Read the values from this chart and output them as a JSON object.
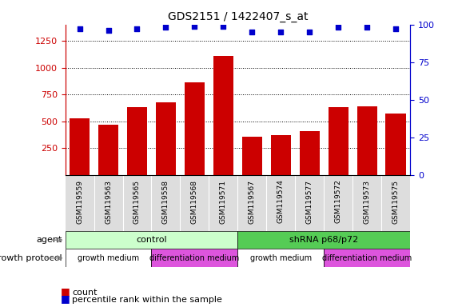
{
  "title": "GDS2151 / 1422407_s_at",
  "samples": [
    "GSM119559",
    "GSM119563",
    "GSM119565",
    "GSM119558",
    "GSM119568",
    "GSM119571",
    "GSM119567",
    "GSM119574",
    "GSM119577",
    "GSM119572",
    "GSM119573",
    "GSM119575"
  ],
  "counts": [
    530,
    470,
    630,
    680,
    860,
    1110,
    360,
    370,
    410,
    630,
    640,
    570
  ],
  "percentile_ranks": [
    97,
    96,
    97,
    98,
    99,
    99,
    95,
    95,
    95,
    98,
    98,
    97
  ],
  "ylim_left": [
    0,
    1400
  ],
  "ylim_right": [
    0,
    100
  ],
  "yticks_left": [
    250,
    500,
    750,
    1000,
    1250
  ],
  "yticks_right": [
    0,
    25,
    50,
    75,
    100
  ],
  "bar_color": "#cc0000",
  "scatter_color": "#0000cc",
  "tick_label_color_left": "#cc0000",
  "tick_label_color_right": "#0000cc",
  "bar_width": 0.7,
  "agent_groups": [
    {
      "label": "control",
      "start": 0,
      "end": 5,
      "color": "#ccffcc"
    },
    {
      "label": "shRNA p68/p72",
      "start": 6,
      "end": 11,
      "color": "#55cc55"
    }
  ],
  "growth_groups": [
    {
      "label": "growth medium",
      "start": 0,
      "end": 2,
      "color": "#ffffff"
    },
    {
      "label": "differentiation medium",
      "start": 3,
      "end": 5,
      "color": "#dd55dd"
    },
    {
      "label": "growth medium",
      "start": 6,
      "end": 8,
      "color": "#ffffff"
    },
    {
      "label": "differentiation medium",
      "start": 9,
      "end": 11,
      "color": "#dd55dd"
    }
  ],
  "agent_label": "agent",
  "growth_label": "growth protocol",
  "legend_count_color": "#cc0000",
  "legend_pct_color": "#0000cc",
  "label_area_color": "#dddddd",
  "n_samples": 12
}
